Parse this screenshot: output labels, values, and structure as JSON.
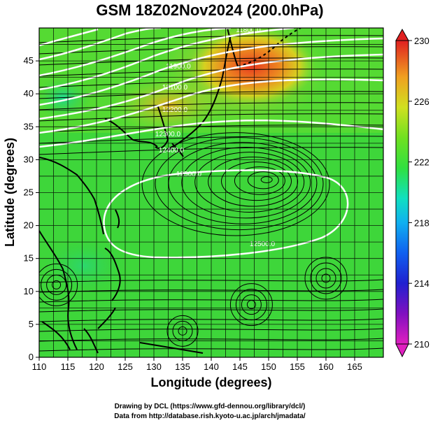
{
  "title": "GSM 18Z02Nov2024 (200.0hPa)",
  "x_axis": {
    "label": "Longitude (degrees)",
    "ticks": [
      "110",
      "115",
      "120",
      "125",
      "130",
      "135",
      "140",
      "145",
      "150",
      "155",
      "160",
      "165"
    ],
    "range": [
      110,
      170
    ]
  },
  "y_axis": {
    "label": "Latitude (degrees)",
    "ticks": [
      "0",
      "5",
      "10",
      "15",
      "20",
      "25",
      "30",
      "35",
      "40",
      "45"
    ],
    "range": [
      0,
      50
    ]
  },
  "colorbar": {
    "ticks": [
      "210",
      "214",
      "218",
      "222",
      "226",
      "230"
    ],
    "range": [
      210,
      230
    ],
    "colors": [
      "#e020c0",
      "#5010c0",
      "#1030e0",
      "#10a0f0",
      "#10e0c0",
      "#30e040",
      "#80e020",
      "#d0e020",
      "#f0b020",
      "#f06030",
      "#e02020"
    ]
  },
  "contours": [
    {
      "label": "12500.0"
    },
    {
      "label": "12500.0"
    },
    {
      "label": "12400.0"
    },
    {
      "label": "12300.0"
    },
    {
      "label": "12200.0"
    },
    {
      "label": "12100.0"
    },
    {
      "label": "11900.0"
    },
    {
      "label": "11800.0"
    }
  ],
  "credits": {
    "line1": "Drawing by DCL (https://www.gfd-dennou.org/library/dcl/)",
    "line2": "Data from http://database.rish.kyoto-u.ac.jp/arch/jmadata/"
  },
  "colors": {
    "field_base": "#3ed63a",
    "field_warm": "#e8a020",
    "field_hot": "#e84020",
    "contour": "#ffffff",
    "streamline": "#000000"
  }
}
